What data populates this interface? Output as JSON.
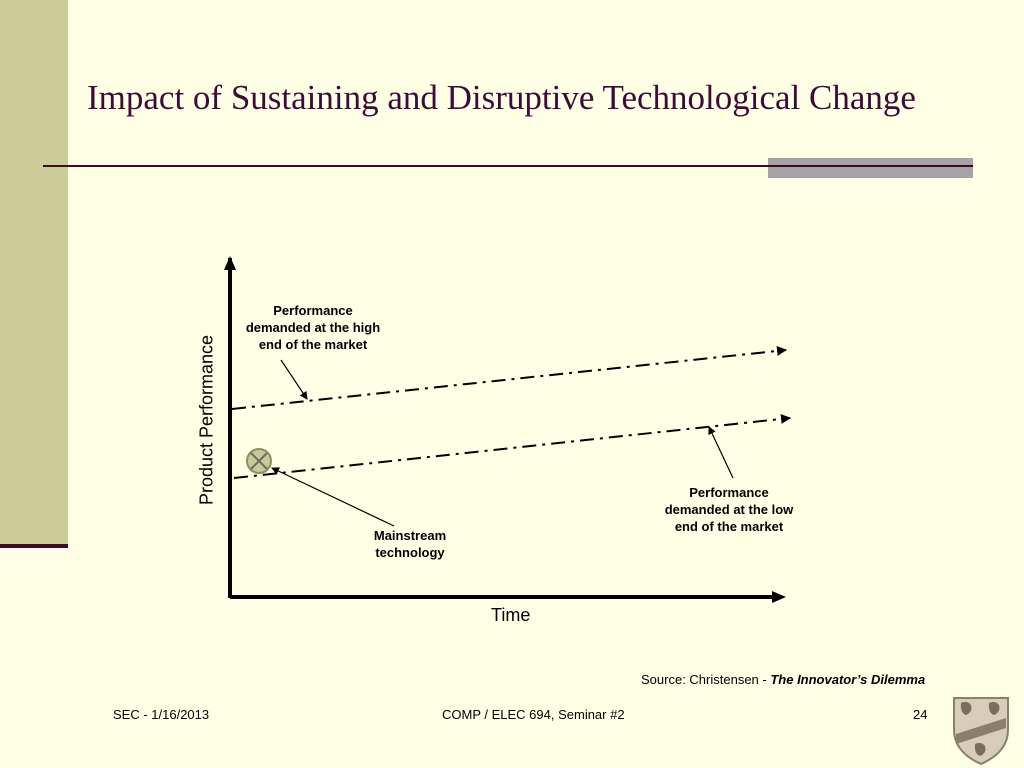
{
  "slide": {
    "title": "Impact of Sustaining and Disruptive Technological Change",
    "colors": {
      "background": "#ffffe5",
      "sidebar": "#cccc99",
      "title": "#3d0a3a",
      "rule": "#3d0a2a",
      "accent": "#a6a3a8"
    }
  },
  "diagram": {
    "y_axis_label": "Product Performance",
    "x_axis_label": "Time",
    "labels": {
      "high_end": [
        "Performance",
        "demanded at the high",
        "end of the market"
      ],
      "low_end": [
        "Performance",
        "demanded at the low",
        "end of the market"
      ],
      "mainstream": [
        "Mainstream",
        "technology"
      ]
    },
    "icons": {
      "mainstream_marker": "circle-x-icon"
    }
  },
  "source": {
    "prefix": "Source: Christensen - ",
    "book": "The Innovator’s Dilemma"
  },
  "footer": {
    "left": "SEC - 1/16/2013",
    "center": "COMP / ELEC 694, Seminar #2",
    "page": "24",
    "logo": "university-crest-icon"
  }
}
